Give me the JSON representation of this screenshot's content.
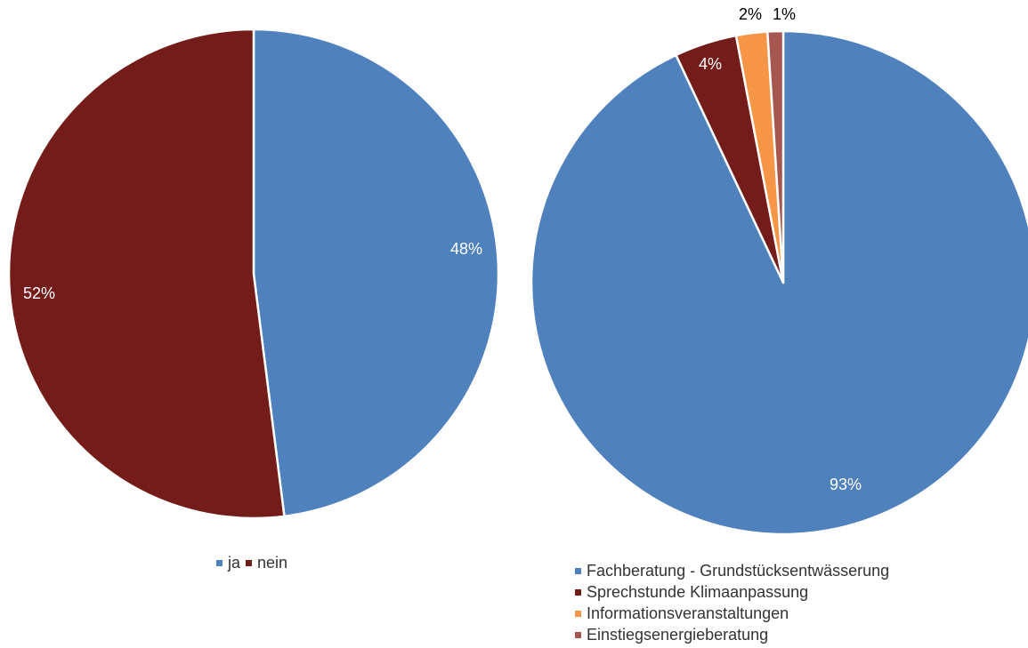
{
  "chart_data": [
    {
      "type": "pie",
      "title": "",
      "slices": [
        {
          "label": "ja",
          "value": 48,
          "display": "48%",
          "color": "#4F81BD"
        },
        {
          "label": "nein",
          "value": 52,
          "display": "52%",
          "color": "#741C1A"
        }
      ],
      "legend_position": "bottom"
    },
    {
      "type": "pie",
      "title": "",
      "slices": [
        {
          "label": "Fachberatung - Grundstücksentwässerung",
          "value": 93,
          "display": "93%",
          "color": "#4F81BD"
        },
        {
          "label": "Sprechstunde Klimaanpassung",
          "value": 4,
          "display": "4%",
          "color": "#741C1A"
        },
        {
          "label": "Informationsveranstaltungen",
          "value": 2,
          "display": "2%",
          "color": "#F79646"
        },
        {
          "label": "Einstiegsenergieberatung",
          "value": 1,
          "display": "1%",
          "color": "#A5564F"
        }
      ],
      "legend_position": "bottom"
    }
  ]
}
